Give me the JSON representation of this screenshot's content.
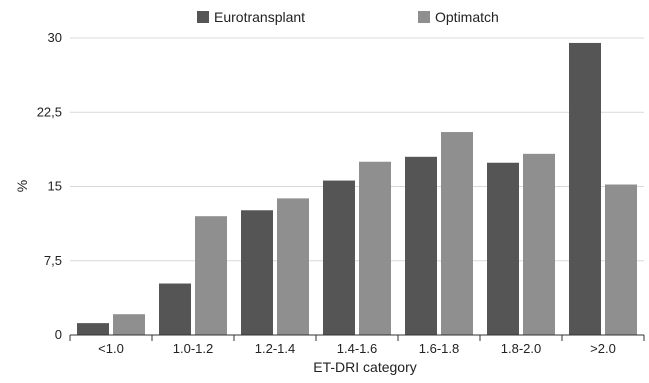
{
  "chart_data": {
    "type": "bar",
    "title": "",
    "xlabel": "ET-DRI category",
    "ylabel": "%",
    "ylim": [
      0,
      30
    ],
    "yticks": [
      {
        "value": 0,
        "label": "0"
      },
      {
        "value": 7.5,
        "label": "7,5"
      },
      {
        "value": 15,
        "label": "15"
      },
      {
        "value": 22.5,
        "label": "22,5"
      },
      {
        "value": 30,
        "label": "30"
      }
    ],
    "grid": true,
    "legend_position": "top",
    "categories": [
      "<1.0",
      "1.0-1.2",
      "1.2-1.4",
      "1.4-1.6",
      "1.6-1.8",
      "1.8-2.0",
      ">2.0"
    ],
    "series": [
      {
        "name": "Eurotransplant",
        "color": "#555555",
        "values": [
          1.2,
          5.2,
          12.6,
          15.6,
          18.0,
          17.4,
          29.5
        ]
      },
      {
        "name": "Optimatch",
        "color": "#8f8f8f",
        "values": [
          2.1,
          12.0,
          13.8,
          17.5,
          20.5,
          18.3,
          15.2
        ]
      }
    ]
  }
}
